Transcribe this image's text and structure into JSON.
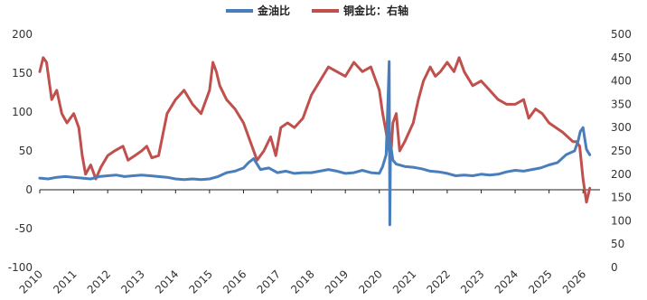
{
  "chart_data": {
    "type": "line",
    "title": "",
    "legend_position": "top-center",
    "grid": false,
    "x_ticks": [
      "2010",
      "2011",
      "2012",
      "2013",
      "2014",
      "2015",
      "2016",
      "2017",
      "2018",
      "2019",
      "2020",
      "2021",
      "2022",
      "2023",
      "2024",
      "2025",
      "2026"
    ],
    "xlim": [
      2010,
      2026.5
    ],
    "y_left": {
      "lim": [
        -100,
        200
      ],
      "ticks": [
        "200",
        "150",
        "100",
        "50",
        "0",
        "-50",
        "-100"
      ]
    },
    "y_right": {
      "lim": [
        0,
        500
      ],
      "ticks": [
        "500",
        "450",
        "400",
        "350",
        "300",
        "250",
        "200",
        "150",
        "100",
        "50",
        "0"
      ]
    },
    "series": [
      {
        "name": "金油比",
        "axis": "left",
        "color": "#4a7ebb",
        "x": [
          2010.0,
          2010.25,
          2010.5,
          2010.75,
          2011.0,
          2011.25,
          2011.5,
          2011.75,
          2012.0,
          2012.25,
          2012.5,
          2012.75,
          2013.0,
          2013.25,
          2013.5,
          2013.75,
          2014.0,
          2014.25,
          2014.5,
          2014.75,
          2015.0,
          2015.25,
          2015.5,
          2015.75,
          2016.0,
          2016.15,
          2016.3,
          2016.5,
          2016.75,
          2017.0,
          2017.25,
          2017.5,
          2017.75,
          2018.0,
          2018.25,
          2018.5,
          2018.75,
          2019.0,
          2019.25,
          2019.5,
          2019.75,
          2020.0,
          2020.1,
          2020.2,
          2020.26,
          2020.29,
          2020.31,
          2020.33,
          2020.36,
          2020.4,
          2020.5,
          2020.75,
          2021.0,
          2021.25,
          2021.5,
          2021.75,
          2022.0,
          2022.25,
          2022.5,
          2022.75,
          2023.0,
          2023.25,
          2023.5,
          2023.75,
          2024.0,
          2024.25,
          2024.5,
          2024.75,
          2025.0,
          2025.25,
          2025.5,
          2025.75,
          2025.85,
          2025.92,
          2026.0,
          2026.1,
          2026.2
        ],
        "y": [
          15,
          14,
          16,
          17,
          16,
          15,
          14,
          17,
          18,
          19,
          17,
          18,
          19,
          18,
          17,
          16,
          14,
          13,
          14,
          13,
          14,
          17,
          22,
          24,
          28,
          35,
          40,
          26,
          28,
          22,
          24,
          21,
          22,
          22,
          24,
          26,
          24,
          21,
          22,
          25,
          22,
          21,
          30,
          45,
          120,
          165,
          -45,
          60,
          50,
          38,
          33,
          30,
          29,
          27,
          24,
          23,
          21,
          18,
          19,
          18,
          20,
          19,
          20,
          23,
          25,
          24,
          26,
          28,
          32,
          35,
          45,
          50,
          62,
          75,
          80,
          52,
          45
        ]
      },
      {
        "name": "铜金比：右轴",
        "axis": "right",
        "color": "#c0504d",
        "x": [
          2010.0,
          2010.1,
          2010.2,
          2010.35,
          2010.5,
          2010.65,
          2010.8,
          2011.0,
          2011.15,
          2011.25,
          2011.35,
          2011.5,
          2011.65,
          2011.8,
          2012.0,
          2012.2,
          2012.45,
          2012.6,
          2012.8,
          2013.0,
          2013.15,
          2013.3,
          2013.5,
          2013.75,
          2014.0,
          2014.25,
          2014.5,
          2014.75,
          2015.0,
          2015.1,
          2015.2,
          2015.3,
          2015.5,
          2015.75,
          2016.0,
          2016.2,
          2016.4,
          2016.6,
          2016.8,
          2016.95,
          2017.1,
          2017.3,
          2017.5,
          2017.75,
          2018.0,
          2018.25,
          2018.5,
          2018.75,
          2019.0,
          2019.25,
          2019.5,
          2019.75,
          2020.0,
          2020.1,
          2020.2,
          2020.27,
          2020.33,
          2020.4,
          2020.5,
          2020.6,
          2020.75,
          2021.0,
          2021.15,
          2021.3,
          2021.5,
          2021.65,
          2021.8,
          2022.0,
          2022.2,
          2022.35,
          2022.5,
          2022.75,
          2023.0,
          2023.25,
          2023.5,
          2023.75,
          2024.0,
          2024.25,
          2024.4,
          2024.6,
          2024.8,
          2025.0,
          2025.2,
          2025.4,
          2025.55,
          2025.7,
          2025.8,
          2025.9,
          2026.0,
          2026.1,
          2026.2
        ],
        "y": [
          420,
          450,
          440,
          360,
          380,
          330,
          310,
          330,
          300,
          240,
          200,
          220,
          190,
          215,
          240,
          250,
          260,
          230,
          240,
          250,
          260,
          235,
          240,
          330,
          360,
          380,
          350,
          330,
          380,
          440,
          420,
          390,
          360,
          340,
          310,
          270,
          230,
          250,
          280,
          240,
          300,
          310,
          300,
          320,
          370,
          400,
          430,
          420,
          410,
          440,
          420,
          430,
          380,
          330,
          290,
          260,
          230,
          310,
          330,
          250,
          270,
          310,
          360,
          400,
          430,
          410,
          420,
          440,
          420,
          450,
          420,
          390,
          400,
          380,
          360,
          350,
          350,
          360,
          320,
          340,
          330,
          310,
          300,
          290,
          280,
          270,
          270,
          260,
          190,
          140,
          170
        ]
      }
    ]
  }
}
